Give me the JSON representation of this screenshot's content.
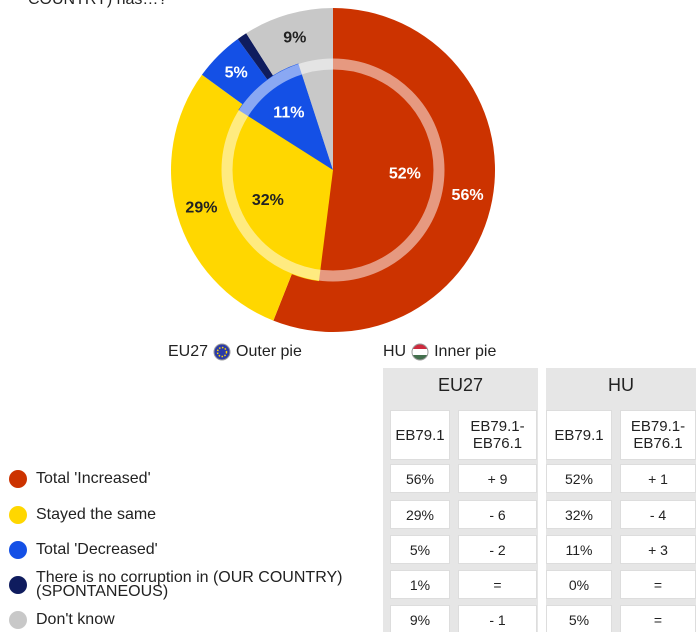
{
  "header": {
    "title": "COUNTRY) has…?"
  },
  "chart_data": {
    "type": "pie",
    "categories": [
      "Total 'Increased'",
      "Stayed the same",
      "Total 'Decreased'",
      "There is no corruption in (OUR COUNTRY) (SPONTANEOUS)",
      "Don't know"
    ],
    "colors": [
      "#cc3300",
      "#ffd700",
      "#1450e6",
      "#0f1c5e",
      "#c8c8c8"
    ],
    "series": [
      {
        "name": "EU27",
        "ring": "Outer pie",
        "values": [
          56,
          29,
          5,
          1,
          9
        ],
        "value_labels": [
          "56%",
          "29%",
          "5%",
          null,
          "9%"
        ]
      },
      {
        "name": "HU",
        "ring": "Inner pie",
        "values": [
          52,
          32,
          11,
          0,
          5
        ],
        "value_labels": [
          "52%",
          "32%",
          "11%",
          null,
          null
        ]
      }
    ]
  },
  "table": {
    "columns": [
      "EB79.1",
      "EB79.1-EB76.1"
    ],
    "rows": [
      [
        "56%",
        "+ 9",
        "52%",
        "+ 1"
      ],
      [
        "29%",
        "- 6",
        "32%",
        "- 4"
      ],
      [
        "5%",
        "- 2",
        "11%",
        "+ 3"
      ],
      [
        "1%",
        "=",
        "0%",
        "="
      ],
      [
        "9%",
        "- 1",
        "5%",
        "="
      ]
    ]
  }
}
